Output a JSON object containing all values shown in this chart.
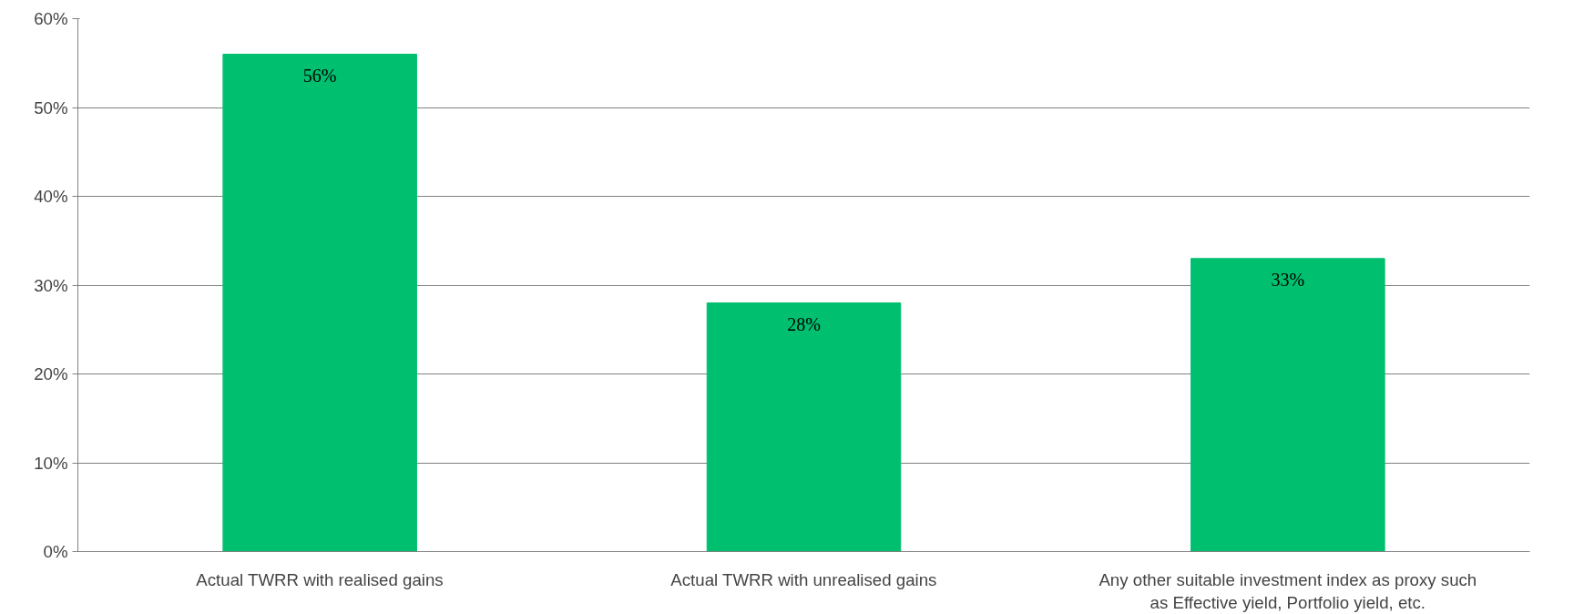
{
  "chart_data": {
    "type": "bar",
    "categories": [
      "Actual TWRR with realised gains",
      "Actual TWRR with unrealised gains",
      "Any other suitable investment index as proxy such\nas Effective yield, Portfolio yield, etc."
    ],
    "values": [
      56,
      28,
      33
    ],
    "color": "#00c070",
    "value_labels": [
      "56%",
      "28%",
      "33%"
    ],
    "ylim": [
      0,
      60
    ],
    "yticks": [
      {
        "value": 0,
        "label": "0%"
      },
      {
        "value": 10,
        "label": "10%"
      },
      {
        "value": 20,
        "label": "20%"
      },
      {
        "value": 30,
        "label": "30%"
      },
      {
        "value": 40,
        "label": "40%"
      },
      {
        "value": 50,
        "label": "50%"
      },
      {
        "value": 60,
        "label": "60%"
      }
    ],
    "grid": "y"
  }
}
